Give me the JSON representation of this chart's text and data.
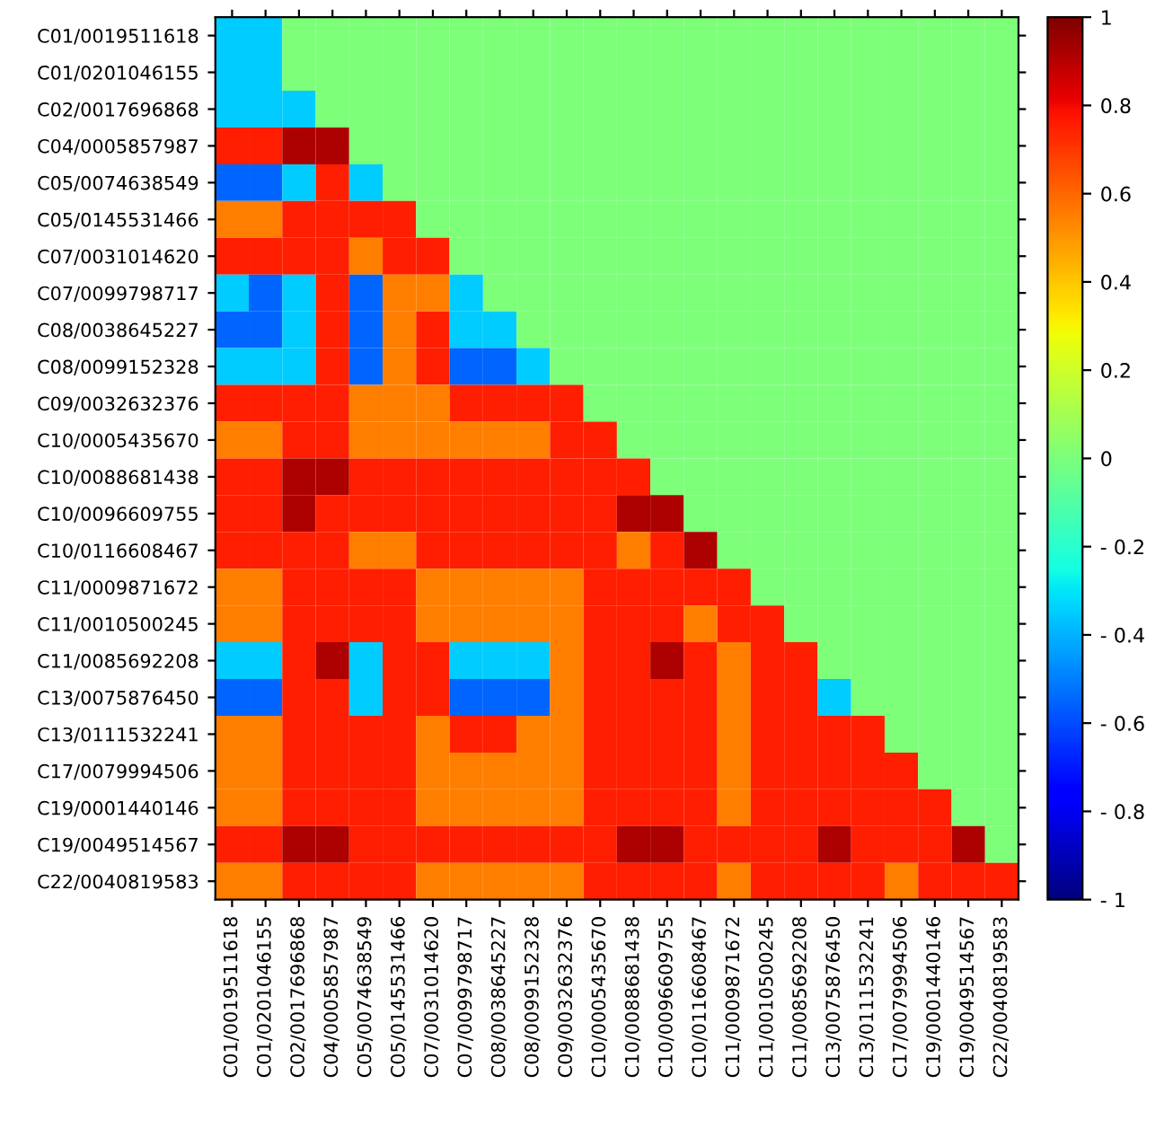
{
  "chart_data": {
    "type": "heatmap",
    "categories": [
      "C01/0019511618",
      "C01/0201046155",
      "C02/0017696868",
      "C04/0005857987",
      "C05/0074638549",
      "C05/0145531466",
      "C07/0031014620",
      "C07/0099798717",
      "C08/0038645227",
      "C08/0099152328",
      "C09/0032632376",
      "C10/0005435670",
      "C10/0088681438",
      "C10/0096609755",
      "C10/0116608467",
      "C11/0009871672",
      "C11/0010500245",
      "C11/0085692208",
      "C13/0075876450",
      "C13/0111532241",
      "C17/0079994506",
      "C19/0001440146",
      "C19/0049514567",
      "C22/0040819583"
    ],
    "y_categories": [
      "C01/0019511618",
      "C01/0201046155",
      "C02/0017696868",
      "C04/0005857987",
      "C05/0074638549",
      "C05/0145531466",
      "C07/0031014620",
      "C07/0099798717",
      "C08/0038645227",
      "C08/0099152328",
      "C09/0032632376",
      "C10/0005435670",
      "C10/0088681438",
      "C10/0096609755",
      "C10/0116608467",
      "C11/0009871672",
      "C11/0010500245",
      "C11/0085692208",
      "C13/0075876450",
      "C13/0111532241",
      "C17/0079994506",
      "C19/0001440146",
      "C19/0049514567",
      "C22/0040819583"
    ],
    "cells": [
      [
        -0.35,
        -0.35,
        0,
        0,
        0,
        0,
        0,
        0,
        0,
        0,
        0,
        0,
        0,
        0,
        0,
        0,
        0,
        0,
        0,
        0,
        0,
        0,
        0,
        0
      ],
      [
        -0.35,
        -0.35,
        0,
        0,
        0,
        0,
        0,
        0,
        0,
        0,
        0,
        0,
        0,
        0,
        0,
        0,
        0,
        0,
        0,
        0,
        0,
        0,
        0,
        0
      ],
      [
        -0.35,
        -0.35,
        -0.35,
        0,
        0,
        0,
        0,
        0,
        0,
        0,
        0,
        0,
        0,
        0,
        0,
        0,
        0,
        0,
        0,
        0,
        0,
        0,
        0,
        0
      ],
      [
        0.75,
        0.75,
        0.92,
        0.92,
        0,
        0,
        0,
        0,
        0,
        0,
        0,
        0,
        0,
        0,
        0,
        0,
        0,
        0,
        0,
        0,
        0,
        0,
        0,
        0
      ],
      [
        -0.55,
        -0.55,
        -0.35,
        0.75,
        -0.35,
        0,
        0,
        0,
        0,
        0,
        0,
        0,
        0,
        0,
        0,
        0,
        0,
        0,
        0,
        0,
        0,
        0,
        0,
        0
      ],
      [
        0.55,
        0.55,
        0.75,
        0.75,
        0.75,
        0.75,
        0,
        0,
        0,
        0,
        0,
        0,
        0,
        0,
        0,
        0,
        0,
        0,
        0,
        0,
        0,
        0,
        0,
        0
      ],
      [
        0.75,
        0.75,
        0.75,
        0.75,
        0.55,
        0.75,
        0.75,
        0,
        0,
        0,
        0,
        0,
        0,
        0,
        0,
        0,
        0,
        0,
        0,
        0,
        0,
        0,
        0,
        0
      ],
      [
        -0.35,
        -0.55,
        -0.35,
        0.75,
        -0.55,
        0.55,
        0.55,
        -0.35,
        0,
        0,
        0,
        0,
        0,
        0,
        0,
        0,
        0,
        0,
        0,
        0,
        0,
        0,
        0,
        0
      ],
      [
        -0.55,
        -0.55,
        -0.35,
        0.75,
        -0.55,
        0.55,
        0.75,
        -0.35,
        -0.35,
        0,
        0,
        0,
        0,
        0,
        0,
        0,
        0,
        0,
        0,
        0,
        0,
        0,
        0,
        0
      ],
      [
        -0.35,
        -0.35,
        -0.35,
        0.75,
        -0.55,
        0.55,
        0.75,
        -0.55,
        -0.55,
        -0.35,
        0,
        0,
        0,
        0,
        0,
        0,
        0,
        0,
        0,
        0,
        0,
        0,
        0,
        0
      ],
      [
        0.75,
        0.75,
        0.75,
        0.75,
        0.55,
        0.55,
        0.55,
        0.75,
        0.75,
        0.75,
        0.75,
        0,
        0,
        0,
        0,
        0,
        0,
        0,
        0,
        0,
        0,
        0,
        0,
        0
      ],
      [
        0.55,
        0.55,
        0.75,
        0.75,
        0.55,
        0.55,
        0.55,
        0.55,
        0.55,
        0.55,
        0.75,
        0.75,
        0,
        0,
        0,
        0,
        0,
        0,
        0,
        0,
        0,
        0,
        0,
        0
      ],
      [
        0.75,
        0.75,
        0.92,
        0.92,
        0.75,
        0.75,
        0.75,
        0.75,
        0.75,
        0.75,
        0.75,
        0.75,
        0.75,
        0,
        0,
        0,
        0,
        0,
        0,
        0,
        0,
        0,
        0,
        0
      ],
      [
        0.75,
        0.75,
        0.92,
        0.75,
        0.75,
        0.75,
        0.75,
        0.75,
        0.75,
        0.75,
        0.75,
        0.75,
        0.92,
        0.92,
        0,
        0,
        0,
        0,
        0,
        0,
        0,
        0,
        0,
        0
      ],
      [
        0.75,
        0.75,
        0.75,
        0.75,
        0.55,
        0.55,
        0.75,
        0.75,
        0.75,
        0.75,
        0.75,
        0.75,
        0.55,
        0.75,
        0.92,
        0,
        0,
        0,
        0,
        0,
        0,
        0,
        0,
        0
      ],
      [
        0.55,
        0.55,
        0.75,
        0.75,
        0.75,
        0.75,
        0.55,
        0.55,
        0.55,
        0.55,
        0.55,
        0.75,
        0.75,
        0.75,
        0.75,
        0.75,
        0,
        0,
        0,
        0,
        0,
        0,
        0,
        0
      ],
      [
        0.55,
        0.55,
        0.75,
        0.75,
        0.75,
        0.75,
        0.55,
        0.55,
        0.55,
        0.55,
        0.55,
        0.75,
        0.75,
        0.75,
        0.55,
        0.75,
        0.75,
        0,
        0,
        0,
        0,
        0,
        0,
        0
      ],
      [
        -0.35,
        -0.35,
        0.75,
        0.92,
        -0.35,
        0.75,
        0.75,
        -0.35,
        -0.35,
        -0.35,
        0.55,
        0.75,
        0.75,
        0.92,
        0.75,
        0.55,
        0.75,
        0.75,
        0,
        0,
        0,
        0,
        0,
        0
      ],
      [
        -0.55,
        -0.55,
        0.75,
        0.75,
        -0.35,
        0.75,
        0.75,
        -0.55,
        -0.55,
        -0.55,
        0.55,
        0.75,
        0.75,
        0.75,
        0.75,
        0.55,
        0.75,
        0.75,
        -0.35,
        0,
        0,
        0,
        0,
        0
      ],
      [
        0.55,
        0.55,
        0.75,
        0.75,
        0.75,
        0.75,
        0.55,
        0.75,
        0.75,
        0.55,
        0.55,
        0.75,
        0.75,
        0.75,
        0.75,
        0.55,
        0.75,
        0.75,
        0.75,
        0.75,
        0,
        0,
        0,
        0
      ],
      [
        0.55,
        0.55,
        0.75,
        0.75,
        0.75,
        0.75,
        0.55,
        0.55,
        0.55,
        0.55,
        0.55,
        0.75,
        0.75,
        0.75,
        0.75,
        0.55,
        0.75,
        0.75,
        0.75,
        0.75,
        0.75,
        0,
        0,
        0
      ],
      [
        0.55,
        0.55,
        0.75,
        0.75,
        0.75,
        0.75,
        0.55,
        0.55,
        0.55,
        0.55,
        0.55,
        0.75,
        0.75,
        0.75,
        0.75,
        0.55,
        0.75,
        0.75,
        0.75,
        0.75,
        0.75,
        0.75,
        0,
        0
      ],
      [
        0.75,
        0.75,
        0.92,
        0.92,
        0.75,
        0.75,
        0.75,
        0.75,
        0.75,
        0.75,
        0.75,
        0.75,
        0.92,
        0.92,
        0.75,
        0.75,
        0.75,
        0.75,
        0.92,
        0.75,
        0.75,
        0.75,
        0.92,
        0
      ],
      [
        0.55,
        0.55,
        0.75,
        0.75,
        0.75,
        0.75,
        0.55,
        0.55,
        0.55,
        0.55,
        0.55,
        0.75,
        0.75,
        0.75,
        0.75,
        0.55,
        0.75,
        0.75,
        0.75,
        0.75,
        0.55,
        0.75,
        0.75,
        0.75
      ]
    ],
    "clim": [
      -1,
      1
    ],
    "cticks": [
      1,
      0.8,
      0.6,
      0.4,
      0.2,
      0,
      {
        "value": -0.2,
        "label": "- 0.2"
      },
      {
        "value": -0.4,
        "label": "- 0.4"
      },
      {
        "value": -0.6,
        "label": "- 0.6"
      },
      {
        "value": -0.8,
        "label": "- 0.8"
      },
      {
        "value": -1,
        "label": "- 1"
      }
    ]
  }
}
